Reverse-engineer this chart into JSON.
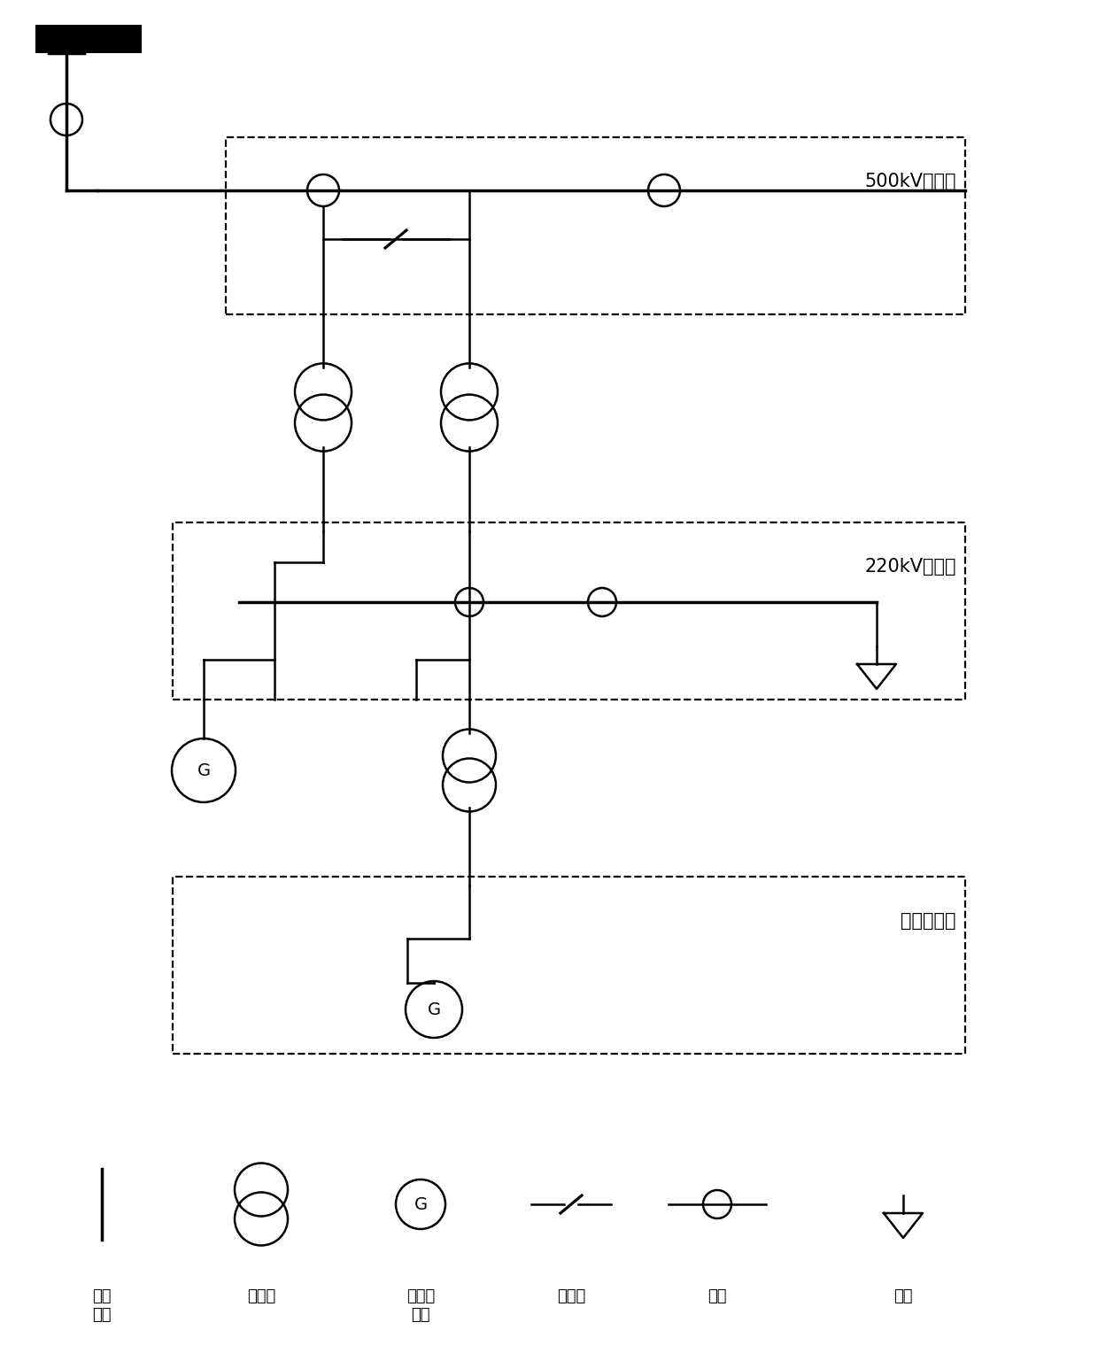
{
  "bg_color": "#ffffff",
  "line_color": "#000000",
  "label_500kV": "500kV拓扑层",
  "label_220kV": "220kV拓扑层",
  "label_low": "低压拓扑层",
  "legend_labels": [
    "母线\n节点",
    "变压器",
    "发电机\n节点",
    "断路器",
    "线路",
    "负荷"
  ],
  "font_size_label": 15,
  "font_size_legend": 13
}
